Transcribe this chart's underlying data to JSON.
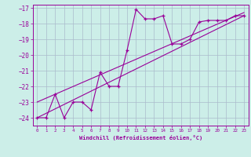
{
  "xlabel": "Windchill (Refroidissement éolien,°C)",
  "bg_color": "#cceee8",
  "grid_color": "#aabbcc",
  "line_color": "#990099",
  "x_data": [
    0,
    1,
    2,
    3,
    4,
    5,
    6,
    7,
    8,
    9,
    10,
    11,
    12,
    13,
    14,
    15,
    16,
    17,
    18,
    19,
    20,
    21,
    22,
    23
  ],
  "y_data": [
    -24.0,
    -24.0,
    -22.5,
    -24.0,
    -23.0,
    -23.0,
    -23.5,
    -21.1,
    -22.0,
    -22.0,
    -19.7,
    -17.1,
    -17.7,
    -17.7,
    -17.5,
    -19.3,
    -19.3,
    -19.0,
    -17.9,
    -17.8,
    -17.8,
    -17.8,
    -17.5,
    -17.5
  ],
  "line1_x": [
    0,
    23
  ],
  "line1_y": [
    -24.0,
    -17.5
  ],
  "line2_x": [
    0,
    23
  ],
  "line2_y": [
    -23.0,
    -17.3
  ],
  "ylim": [
    -24.5,
    -16.8
  ],
  "xlim": [
    -0.5,
    23.5
  ],
  "yticks": [
    -24,
    -23,
    -22,
    -21,
    -20,
    -19,
    -18,
    -17
  ],
  "xticks": [
    0,
    1,
    2,
    3,
    4,
    5,
    6,
    7,
    8,
    9,
    10,
    11,
    12,
    13,
    14,
    15,
    16,
    17,
    18,
    19,
    20,
    21,
    22,
    23
  ]
}
